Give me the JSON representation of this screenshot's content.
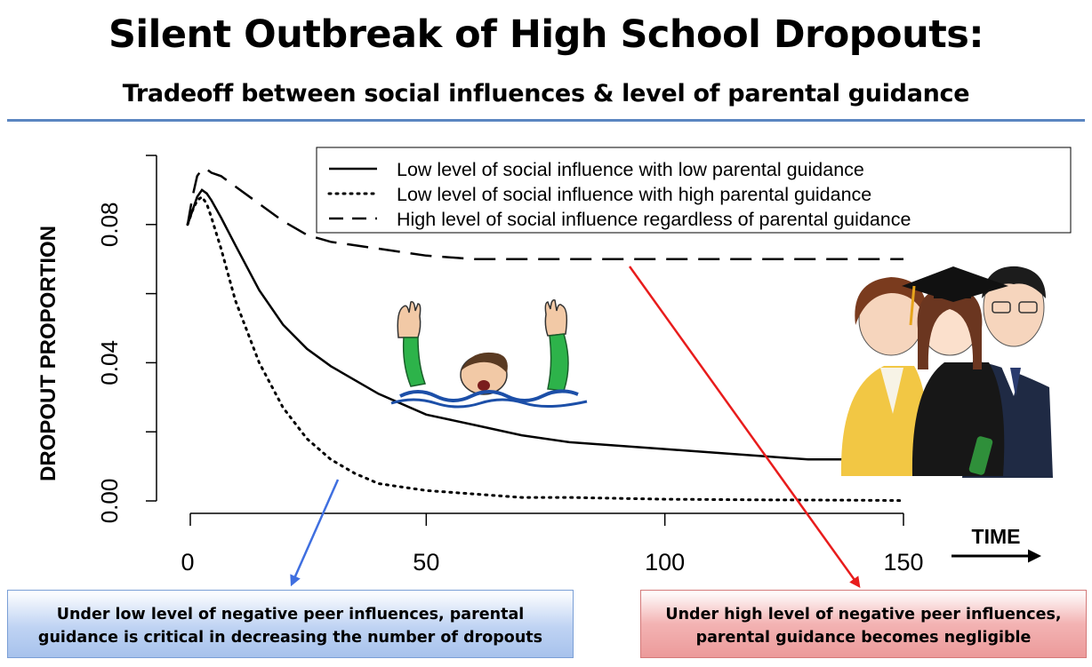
{
  "header": {
    "title": "Silent Outbreak of High School Dropouts:",
    "subtitle": "Tradeoff between social influences & level of parental guidance"
  },
  "annotations": {
    "time_label": "TIME",
    "blue_callout": [
      "Under low level of negative peer influences, parental",
      "guidance is critical in decreasing the number of dropouts"
    ],
    "red_callout": [
      "Under high level of negative peer influences,",
      "parental guidance becomes negligible"
    ],
    "blue_arrow_color": "#3f6fe0",
    "red_arrow_color": "#e81c1c",
    "illustrations": [
      "drowning-person-icon",
      "graduation-family-icon"
    ]
  },
  "chart_data": {
    "type": "line",
    "xlabel": "TIME",
    "ylabel": "DROPOUT PROPORTION",
    "xlim": [
      0,
      150
    ],
    "ylim": [
      0,
      0.1
    ],
    "xticks": [
      0,
      50,
      100,
      150
    ],
    "yticks": [
      "0.00",
      "0.04",
      "0.08"
    ],
    "y_minor_ticks": [
      0.02,
      0.06,
      0.1
    ],
    "grid": false,
    "legend_position": "top-right",
    "series": [
      {
        "name": "Low level of social influence with low parental guidance",
        "style": "solid",
        "x": [
          0,
          1,
          2,
          3,
          4,
          5,
          7,
          10,
          15,
          20,
          25,
          30,
          40,
          50,
          60,
          70,
          80,
          90,
          100,
          110,
          120,
          130,
          140
        ],
        "y": [
          0.08,
          0.084,
          0.088,
          0.09,
          0.089,
          0.087,
          0.082,
          0.074,
          0.061,
          0.051,
          0.044,
          0.039,
          0.031,
          0.025,
          0.022,
          0.019,
          0.017,
          0.016,
          0.015,
          0.014,
          0.013,
          0.012,
          0.012
        ]
      },
      {
        "name": "Low level of social influence with high parental guidance",
        "style": "dotted",
        "x": [
          0,
          1,
          2,
          3,
          4,
          5,
          7,
          10,
          15,
          20,
          25,
          30,
          35,
          40,
          50,
          60,
          70,
          80,
          100,
          120,
          140,
          150
        ],
        "y": [
          0.08,
          0.084,
          0.087,
          0.088,
          0.086,
          0.082,
          0.073,
          0.058,
          0.04,
          0.027,
          0.018,
          0.012,
          0.008,
          0.005,
          0.003,
          0.002,
          0.001,
          0.001,
          0.0005,
          0.0003,
          0.0002,
          0.0001
        ]
      },
      {
        "name": "High level of social influence regardless of parental guidance",
        "style": "dashed",
        "x": [
          0,
          1,
          2,
          3,
          4,
          5,
          7,
          10,
          15,
          20,
          25,
          30,
          40,
          50,
          60,
          70,
          80,
          90,
          100,
          110,
          120,
          130,
          140,
          150
        ],
        "y": [
          0.08,
          0.088,
          0.094,
          0.096,
          0.096,
          0.095,
          0.094,
          0.091,
          0.086,
          0.081,
          0.077,
          0.075,
          0.073,
          0.071,
          0.07,
          0.07,
          0.07,
          0.07,
          0.07,
          0.07,
          0.07,
          0.07,
          0.07,
          0.07
        ]
      }
    ]
  }
}
